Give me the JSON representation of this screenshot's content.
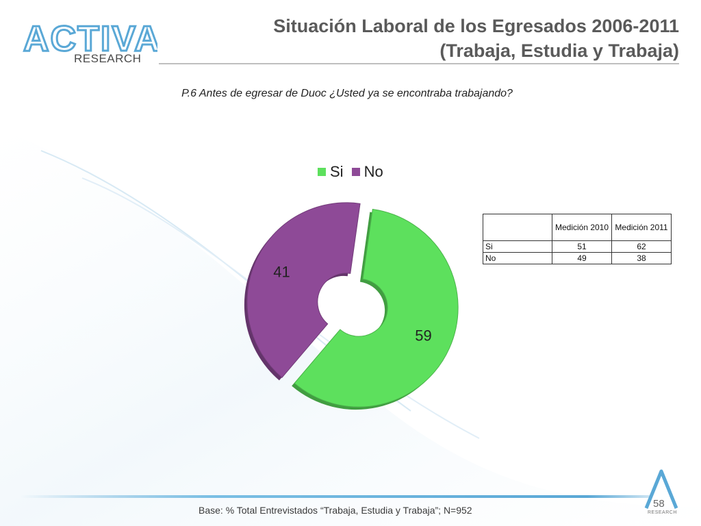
{
  "header": {
    "logo_main": "ACTIVA",
    "logo_sub": "RESEARCH",
    "title_line1": "Situación Laboral de los Egresados 2006-2011",
    "title_line2": "(Trabaja, Estudia y Trabaja)"
  },
  "question": "P.6 Antes de egresar de Duoc ¿Usted ya se encontraba trabajando?",
  "chart_data": {
    "type": "pie",
    "style": "doughnut-exploded",
    "categories": [
      "Si",
      "No"
    ],
    "values": [
      59,
      41
    ],
    "colors": [
      "#5de05d",
      "#8e4a97"
    ],
    "legend_position": "top",
    "title": ""
  },
  "table": {
    "headers": [
      "",
      "Medición 2010",
      "Medición 2011"
    ],
    "rows": [
      {
        "label": "Si",
        "v2010": "51",
        "v2011": "62"
      },
      {
        "label": "No",
        "v2010": "49",
        "v2011": "38"
      }
    ]
  },
  "footer": {
    "note": "Base: % Total Entrevistados “Trabaja, Estudia y Trabaja”; N=952",
    "page_number": "58",
    "logo_sub": "RESEARCH"
  },
  "colors": {
    "accent": "#5aa8d6",
    "title": "#5a5a5a"
  }
}
